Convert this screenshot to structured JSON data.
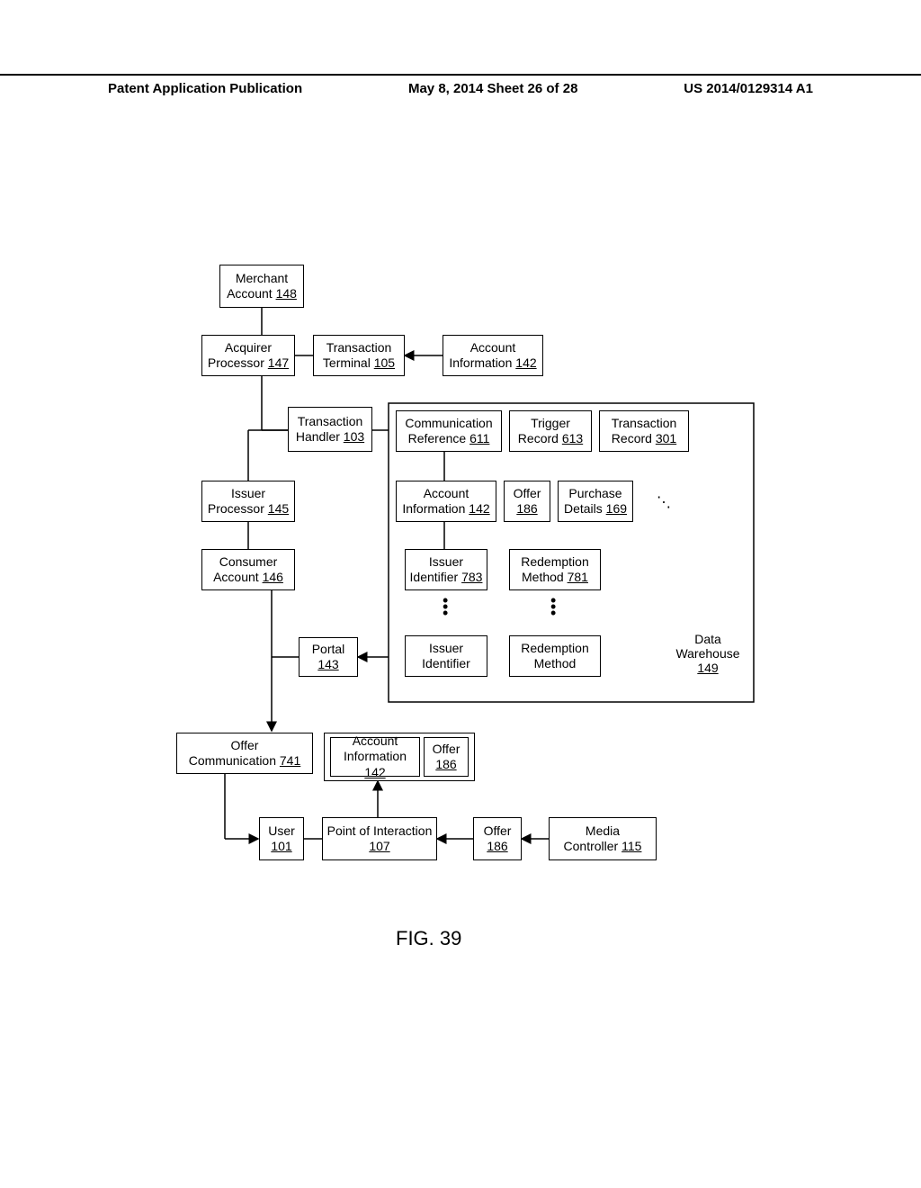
{
  "header": {
    "left": "Patent Application Publication",
    "center": "May 8, 2014  Sheet 26 of 28",
    "right": "US 2014/0129314 A1"
  },
  "figure_caption": "FIG. 39",
  "colors": {
    "line": "#000000",
    "background": "#ffffff",
    "text": "#000000"
  },
  "style": {
    "box_border_width": 1.5,
    "font_family": "Arial",
    "box_font_size": 14,
    "header_font_size": 15,
    "caption_font_size": 22,
    "arrow_size": 8
  },
  "nodes": {
    "merchant_account": {
      "label": "Merchant Account",
      "ref": "148"
    },
    "acquirer_processor": {
      "label": "Acquirer Processor",
      "ref": "147"
    },
    "transaction_terminal": {
      "label": "Transaction Terminal",
      "ref": "105"
    },
    "account_information_top": {
      "label": "Account Information",
      "ref": "142"
    },
    "transaction_handler": {
      "label": "Transaction Handler",
      "ref": "103"
    },
    "issuer_processor": {
      "label": "Issuer Processor",
      "ref": "145"
    },
    "consumer_account": {
      "label": "Consumer Account",
      "ref": "146"
    },
    "comm_reference": {
      "label": "Communication Reference",
      "ref": "611"
    },
    "trigger_record": {
      "label": "Trigger Record",
      "ref": "613"
    },
    "transaction_record": {
      "label": "Transaction Record",
      "ref": "301"
    },
    "account_information_mid": {
      "label": "Account Information",
      "ref": "142"
    },
    "offer_mid": {
      "label": "Offer",
      "ref": "186"
    },
    "purchase_details": {
      "label": "Purchase Details",
      "ref": "169"
    },
    "issuer_identifier": {
      "label": "Issuer Identifier",
      "ref": "783"
    },
    "redemption_method": {
      "label": "Redemption Method",
      "ref": "781"
    },
    "issuer_identifier2": {
      "label": "Issuer Identifier",
      "ref": ""
    },
    "redemption_method2": {
      "label": "Redemption Method",
      "ref": ""
    },
    "data_warehouse": {
      "label": "Data Warehouse",
      "ref": "149"
    },
    "portal": {
      "label": "Portal",
      "ref": "143"
    },
    "offer_communication": {
      "label": "Offer Communication",
      "ref": "741"
    },
    "account_information_low": {
      "label": "Account Information",
      "ref": "142"
    },
    "offer_low": {
      "label": "Offer",
      "ref": "186"
    },
    "user": {
      "label": "User",
      "ref": "101"
    },
    "point_of_interaction": {
      "label": "Point of Interaction",
      "ref": "107"
    },
    "offer_bot": {
      "label": "Offer",
      "ref": "186"
    },
    "media_controller": {
      "label": "Media Controller",
      "ref": "115"
    }
  }
}
